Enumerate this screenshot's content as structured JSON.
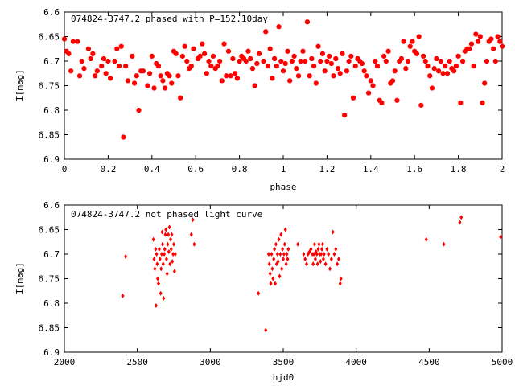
{
  "chart_data": [
    {
      "type": "scatter",
      "title": "074824-3747.2 phased with P=152.10day",
      "xlabel": "phase",
      "ylabel": "I[mag]",
      "xlim": [
        0,
        2
      ],
      "ylim": [
        6.6,
        6.9
      ],
      "y_inverted": true,
      "grid": false,
      "marker": "filled-octagon",
      "color": "#ff0000",
      "x_ticks": [
        "0",
        "0.2",
        "0.4",
        "0.6",
        "0.8",
        "1",
        "1.2",
        "1.4",
        "1.6",
        "1.8",
        "2"
      ],
      "y_ticks": [
        "6.6",
        "6.65",
        "6.7",
        "6.75",
        "6.8",
        "6.85",
        "6.9"
      ],
      "points": [
        [
          0.0,
          6.655
        ],
        [
          0.01,
          6.68
        ],
        [
          0.02,
          6.685
        ],
        [
          0.03,
          6.72
        ],
        [
          0.04,
          6.66
        ],
        [
          0.06,
          6.66
        ],
        [
          0.07,
          6.73
        ],
        [
          0.08,
          6.7
        ],
        [
          0.09,
          6.715
        ],
        [
          0.11,
          6.675
        ],
        [
          0.12,
          6.695
        ],
        [
          0.13,
          6.685
        ],
        [
          0.14,
          6.73
        ],
        [
          0.15,
          6.72
        ],
        [
          0.17,
          6.71
        ],
        [
          0.18,
          6.695
        ],
        [
          0.19,
          6.725
        ],
        [
          0.2,
          6.7
        ],
        [
          0.21,
          6.735
        ],
        [
          0.23,
          6.7
        ],
        [
          0.24,
          6.675
        ],
        [
          0.25,
          6.71
        ],
        [
          0.26,
          6.67
        ],
        [
          0.27,
          6.855
        ],
        [
          0.28,
          6.71
        ],
        [
          0.29,
          6.74
        ],
        [
          0.31,
          6.69
        ],
        [
          0.32,
          6.745
        ],
        [
          0.33,
          6.73
        ],
        [
          0.34,
          6.8
        ],
        [
          0.35,
          6.72
        ],
        [
          0.36,
          6.72
        ],
        [
          0.38,
          6.75
        ],
        [
          0.39,
          6.725
        ],
        [
          0.4,
          6.69
        ],
        [
          0.41,
          6.755
        ],
        [
          0.42,
          6.705
        ],
        [
          0.43,
          6.71
        ],
        [
          0.44,
          6.73
        ],
        [
          0.45,
          6.74
        ],
        [
          0.46,
          6.755
        ],
        [
          0.47,
          6.725
        ],
        [
          0.48,
          6.73
        ],
        [
          0.49,
          6.745
        ],
        [
          0.5,
          6.68
        ],
        [
          0.51,
          6.685
        ],
        [
          0.52,
          6.73
        ],
        [
          0.53,
          6.775
        ],
        [
          0.54,
          6.69
        ],
        [
          0.55,
          6.67
        ],
        [
          0.56,
          6.7
        ],
        [
          0.57,
          6.715
        ],
        [
          0.58,
          6.71
        ],
        [
          0.59,
          6.675
        ],
        [
          0.61,
          6.695
        ],
        [
          0.62,
          6.69
        ],
        [
          0.63,
          6.665
        ],
        [
          0.64,
          6.685
        ],
        [
          0.65,
          6.725
        ],
        [
          0.66,
          6.7
        ],
        [
          0.67,
          6.71
        ],
        [
          0.68,
          6.69
        ],
        [
          0.69,
          6.715
        ],
        [
          0.7,
          6.71
        ],
        [
          0.71,
          6.7
        ],
        [
          0.72,
          6.74
        ],
        [
          0.73,
          6.665
        ],
        [
          0.74,
          6.73
        ],
        [
          0.75,
          6.68
        ],
        [
          0.76,
          6.73
        ],
        [
          0.77,
          6.695
        ],
        [
          0.78,
          6.725
        ],
        [
          0.79,
          6.735
        ],
        [
          0.8,
          6.7
        ],
        [
          0.81,
          6.69
        ],
        [
          0.82,
          6.695
        ],
        [
          0.83,
          6.7
        ],
        [
          0.84,
          6.68
        ],
        [
          0.85,
          6.695
        ],
        [
          0.86,
          6.715
        ],
        [
          0.87,
          6.75
        ],
        [
          0.88,
          6.705
        ],
        [
          0.89,
          6.685
        ],
        [
          0.91,
          6.7
        ],
        [
          0.92,
          6.64
        ],
        [
          0.93,
          6.71
        ],
        [
          0.94,
          6.675
        ],
        [
          0.95,
          6.735
        ],
        [
          0.96,
          6.695
        ],
        [
          0.97,
          6.71
        ],
        [
          0.98,
          6.63
        ],
        [
          0.99,
          6.7
        ],
        [
          1.0,
          6.72
        ],
        [
          1.01,
          6.705
        ],
        [
          1.02,
          6.68
        ],
        [
          1.03,
          6.74
        ],
        [
          1.04,
          6.7
        ],
        [
          1.05,
          6.69
        ],
        [
          1.06,
          6.715
        ],
        [
          1.07,
          6.73
        ],
        [
          1.08,
          6.7
        ],
        [
          1.09,
          6.68
        ],
        [
          1.1,
          6.7
        ],
        [
          1.11,
          6.62
        ],
        [
          1.12,
          6.73
        ],
        [
          1.13,
          6.695
        ],
        [
          1.14,
          6.71
        ],
        [
          1.15,
          6.745
        ],
        [
          1.16,
          6.67
        ],
        [
          1.17,
          6.7
        ],
        [
          1.18,
          6.685
        ],
        [
          1.19,
          6.72
        ],
        [
          1.2,
          6.7
        ],
        [
          1.21,
          6.69
        ],
        [
          1.22,
          6.705
        ],
        [
          1.23,
          6.73
        ],
        [
          1.24,
          6.695
        ],
        [
          1.25,
          6.715
        ],
        [
          1.26,
          6.725
        ],
        [
          1.27,
          6.685
        ],
        [
          1.28,
          6.81
        ],
        [
          1.29,
          6.72
        ],
        [
          1.3,
          6.7
        ],
        [
          1.31,
          6.69
        ],
        [
          1.32,
          6.775
        ],
        [
          1.33,
          6.71
        ],
        [
          1.34,
          6.695
        ],
        [
          1.35,
          6.7
        ],
        [
          1.36,
          6.705
        ],
        [
          1.37,
          6.72
        ],
        [
          1.38,
          6.73
        ],
        [
          1.39,
          6.765
        ],
        [
          1.4,
          6.74
        ],
        [
          1.41,
          6.75
        ],
        [
          1.42,
          6.7
        ],
        [
          1.43,
          6.71
        ],
        [
          1.44,
          6.78
        ],
        [
          1.45,
          6.785
        ],
        [
          1.46,
          6.69
        ],
        [
          1.47,
          6.7
        ],
        [
          1.48,
          6.68
        ],
        [
          1.49,
          6.745
        ],
        [
          1.5,
          6.74
        ],
        [
          1.51,
          6.72
        ],
        [
          1.52,
          6.78
        ],
        [
          1.53,
          6.7
        ],
        [
          1.54,
          6.695
        ],
        [
          1.55,
          6.66
        ],
        [
          1.56,
          6.715
        ],
        [
          1.57,
          6.7
        ],
        [
          1.58,
          6.67
        ],
        [
          1.59,
          6.66
        ],
        [
          1.6,
          6.68
        ],
        [
          1.61,
          6.685
        ],
        [
          1.62,
          6.65
        ],
        [
          1.63,
          6.79
        ],
        [
          1.64,
          6.69
        ],
        [
          1.65,
          6.7
        ],
        [
          1.66,
          6.71
        ],
        [
          1.67,
          6.73
        ],
        [
          1.68,
          6.755
        ],
        [
          1.69,
          6.715
        ],
        [
          1.7,
          6.695
        ],
        [
          1.71,
          6.72
        ],
        [
          1.72,
          6.7
        ],
        [
          1.73,
          6.725
        ],
        [
          1.74,
          6.71
        ],
        [
          1.75,
          6.725
        ],
        [
          1.76,
          6.7
        ],
        [
          1.77,
          6.715
        ],
        [
          1.78,
          6.72
        ],
        [
          1.79,
          6.71
        ],
        [
          1.8,
          6.69
        ],
        [
          1.81,
          6.785
        ],
        [
          1.82,
          6.7
        ],
        [
          1.83,
          6.68
        ],
        [
          1.84,
          6.675
        ],
        [
          1.85,
          6.675
        ],
        [
          1.86,
          6.665
        ],
        [
          1.87,
          6.71
        ],
        [
          1.88,
          6.645
        ],
        [
          1.89,
          6.66
        ],
        [
          1.9,
          6.65
        ],
        [
          1.91,
          6.785
        ],
        [
          1.92,
          6.745
        ],
        [
          1.93,
          6.7
        ],
        [
          1.94,
          6.66
        ],
        [
          1.95,
          6.655
        ],
        [
          1.96,
          6.675
        ],
        [
          1.97,
          6.7
        ],
        [
          1.98,
          6.65
        ],
        [
          1.99,
          6.66
        ],
        [
          2.0,
          6.67
        ]
      ]
    },
    {
      "type": "scatter",
      "title": "074824-3747.2 not phased light curve",
      "xlabel": "hjd0",
      "ylabel": "I[mag]",
      "xlim": [
        2000,
        5000
      ],
      "ylim": [
        6.6,
        6.9
      ],
      "y_inverted": true,
      "grid": false,
      "marker": "filled-diamond",
      "color": "#ff0000",
      "x_ticks": [
        "2000",
        "2500",
        "3000",
        "3500",
        "4000",
        "4500",
        "5000"
      ],
      "y_ticks": [
        "6.6",
        "6.65",
        "6.7",
        "6.75",
        "6.8",
        "6.85",
        "6.9"
      ],
      "points": [
        [
          2400,
          6.785
        ],
        [
          2420,
          6.705
        ],
        [
          2610,
          6.67
        ],
        [
          2615,
          6.71
        ],
        [
          2620,
          6.73
        ],
        [
          2625,
          6.69
        ],
        [
          2628,
          6.805
        ],
        [
          2632,
          6.7
        ],
        [
          2636,
          6.72
        ],
        [
          2640,
          6.75
        ],
        [
          2645,
          6.76
        ],
        [
          2650,
          6.69
        ],
        [
          2655,
          6.71
        ],
        [
          2660,
          6.78
        ],
        [
          2663,
          6.73
        ],
        [
          2667,
          6.7
        ],
        [
          2670,
          6.655
        ],
        [
          2673,
          6.68
        ],
        [
          2677,
          6.72
        ],
        [
          2680,
          6.79
        ],
        [
          2684,
          6.7
        ],
        [
          2688,
          6.69
        ],
        [
          2692,
          6.66
        ],
        [
          2696,
          6.65
        ],
        [
          2700,
          6.71
        ],
        [
          2704,
          6.74
        ],
        [
          2708,
          6.68
        ],
        [
          2712,
          6.66
        ],
        [
          2716,
          6.695
        ],
        [
          2720,
          6.645
        ],
        [
          2724,
          6.72
        ],
        [
          2728,
          6.67
        ],
        [
          2732,
          6.69
        ],
        [
          2736,
          6.66
        ],
        [
          2740,
          6.715
        ],
        [
          2745,
          6.7
        ],
        [
          2750,
          6.68
        ],
        [
          2755,
          6.735
        ],
        [
          2760,
          6.7
        ],
        [
          2870,
          6.66
        ],
        [
          2880,
          6.63
        ],
        [
          2890,
          6.68
        ],
        [
          3330,
          6.78
        ],
        [
          3380,
          6.855
        ],
        [
          3400,
          6.7
        ],
        [
          3405,
          6.72
        ],
        [
          3410,
          6.74
        ],
        [
          3415,
          6.76
        ],
        [
          3420,
          6.7
        ],
        [
          3425,
          6.73
        ],
        [
          3430,
          6.75
        ],
        [
          3435,
          6.71
        ],
        [
          3440,
          6.69
        ],
        [
          3445,
          6.76
        ],
        [
          3450,
          6.68
        ],
        [
          3455,
          6.72
        ],
        [
          3460,
          6.7
        ],
        [
          3465,
          6.715
        ],
        [
          3470,
          6.67
        ],
        [
          3475,
          6.745
        ],
        [
          3480,
          6.7
        ],
        [
          3485,
          6.66
        ],
        [
          3490,
          6.73
        ],
        [
          3495,
          6.69
        ],
        [
          3500,
          6.71
        ],
        [
          3505,
          6.7
        ],
        [
          3510,
          6.68
        ],
        [
          3515,
          6.65
        ],
        [
          3520,
          6.72
        ],
        [
          3525,
          6.7
        ],
        [
          3530,
          6.71
        ],
        [
          3535,
          6.69
        ],
        [
          3600,
          6.68
        ],
        [
          3640,
          6.7
        ],
        [
          3650,
          6.71
        ],
        [
          3660,
          6.72
        ],
        [
          3670,
          6.7
        ],
        [
          3680,
          6.695
        ],
        [
          3690,
          6.69
        ],
        [
          3700,
          6.7
        ],
        [
          3705,
          6.72
        ],
        [
          3710,
          6.7
        ],
        [
          3715,
          6.68
        ],
        [
          3720,
          6.71
        ],
        [
          3725,
          6.695
        ],
        [
          3730,
          6.7
        ],
        [
          3735,
          6.72
        ],
        [
          3740,
          6.69
        ],
        [
          3745,
          6.68
        ],
        [
          3750,
          6.7
        ],
        [
          3755,
          6.715
        ],
        [
          3760,
          6.7
        ],
        [
          3765,
          6.69
        ],
        [
          3770,
          6.68
        ],
        [
          3775,
          6.71
        ],
        [
          3780,
          6.7
        ],
        [
          3790,
          6.72
        ],
        [
          3800,
          6.69
        ],
        [
          3810,
          6.7
        ],
        [
          3820,
          6.73
        ],
        [
          3830,
          6.71
        ],
        [
          3840,
          6.655
        ],
        [
          3850,
          6.7
        ],
        [
          3860,
          6.69
        ],
        [
          3870,
          6.72
        ],
        [
          3880,
          6.71
        ],
        [
          3890,
          6.76
        ],
        [
          3895,
          6.75
        ],
        [
          4480,
          6.67
        ],
        [
          4600,
          6.68
        ],
        [
          4710,
          6.635
        ],
        [
          4720,
          6.625
        ],
        [
          4990,
          6.665
        ]
      ]
    }
  ]
}
